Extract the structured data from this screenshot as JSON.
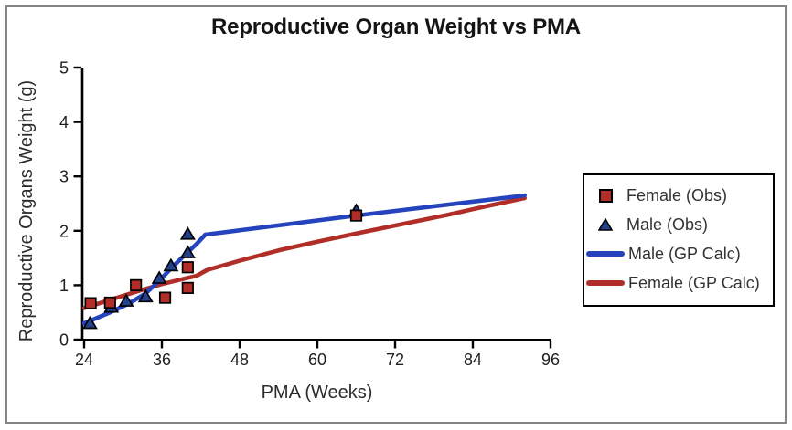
{
  "window": {
    "background": "#ffffff",
    "frame_border_color": "#858585"
  },
  "chart_data": {
    "type": "scatter",
    "title": "Reproductive Organ Weight vs PMA",
    "xlabel": "PMA (Weeks)",
    "ylabel": "Reproductive Organs Weight (g)",
    "xlim": [
      24,
      96
    ],
    "ylim": [
      0,
      5
    ],
    "xticks": [
      24,
      36,
      48,
      60,
      72,
      84,
      96
    ],
    "yticks": [
      0,
      1,
      2,
      3,
      4,
      5
    ],
    "grid": false,
    "legend_position": "right",
    "colors": {
      "female": "#b02e27",
      "male_line": "#2543bd",
      "male_marker": "#24418e",
      "axis": "#000000",
      "tick_text": "#1f1f1f",
      "legend_border": "#000000"
    },
    "series": [
      {
        "id": "female-gp-line",
        "name": "Female (GP Calc)",
        "kind": "line",
        "color": "#b02e27",
        "points": [
          [
            24,
            0.58
          ],
          [
            28,
            0.73
          ],
          [
            32,
            0.88
          ],
          [
            36,
            1.02
          ],
          [
            39.5,
            1.12
          ],
          [
            41.3,
            1.17
          ],
          [
            43,
            1.28
          ],
          [
            48,
            1.45
          ],
          [
            54,
            1.64
          ],
          [
            60,
            1.8
          ],
          [
            66,
            1.95
          ],
          [
            73,
            2.12
          ],
          [
            80,
            2.29
          ],
          [
            86,
            2.45
          ],
          [
            92,
            2.6
          ]
        ]
      },
      {
        "id": "male-gp-line",
        "name": "Male (GP Calc)",
        "kind": "line",
        "color": "#2543bd",
        "points": [
          [
            24,
            0.3
          ],
          [
            28,
            0.5
          ],
          [
            31,
            0.67
          ],
          [
            33.5,
            0.85
          ],
          [
            35.6,
            1.08
          ],
          [
            37.5,
            1.32
          ],
          [
            39.5,
            1.55
          ],
          [
            41.3,
            1.75
          ],
          [
            42.7,
            1.93
          ],
          [
            66,
            2.28
          ],
          [
            92,
            2.65
          ]
        ]
      },
      {
        "id": "male-obs",
        "name": "Male (Obs)",
        "kind": "scatter",
        "marker": "triangle",
        "color": "#24418e",
        "points": [
          [
            24.9,
            0.3
          ],
          [
            28.2,
            0.6
          ],
          [
            30.5,
            0.71
          ],
          [
            33.5,
            0.79
          ],
          [
            35.6,
            1.13
          ],
          [
            37.4,
            1.36
          ],
          [
            40,
            1.6
          ],
          [
            40,
            1.94
          ],
          [
            66,
            2.37
          ]
        ]
      },
      {
        "id": "female-obs",
        "name": "Female (Obs)",
        "kind": "scatter",
        "marker": "square",
        "color": "#b02e27",
        "points": [
          [
            25,
            0.67
          ],
          [
            28,
            0.68
          ],
          [
            32,
            1.0
          ],
          [
            36.5,
            0.77
          ],
          [
            40,
            1.33
          ],
          [
            40,
            0.95
          ],
          [
            66,
            2.28
          ]
        ]
      }
    ],
    "legend": {
      "items": [
        {
          "label": "Female (Obs)",
          "swatch": "square",
          "color": "#b02e27"
        },
        {
          "label": "Male (Obs)",
          "swatch": "triangle",
          "color": "#24418e"
        },
        {
          "label": "Male (GP Calc)",
          "swatch": "line",
          "color": "#2543bd"
        },
        {
          "label": "Female (GP Calc)",
          "swatch": "line",
          "color": "#b02e27"
        }
      ]
    }
  }
}
